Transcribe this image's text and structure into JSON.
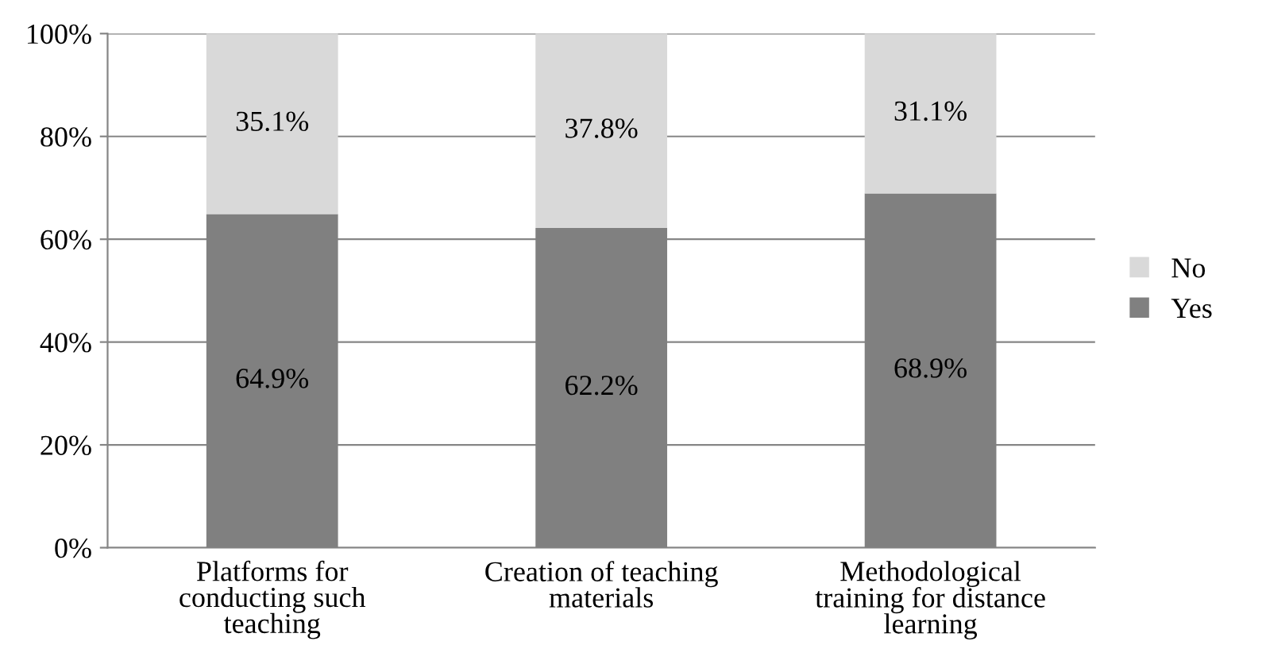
{
  "chart_data": {
    "type": "bar",
    "stacked": true,
    "categories": [
      "Platforms for\nconducting such\nteaching",
      "Creation of teaching\nmaterials",
      "Methodological\ntraining for distance\nlearning"
    ],
    "series": [
      {
        "name": "Yes",
        "color": "#808080",
        "values": [
          64.9,
          62.2,
          68.9
        ],
        "value_labels": [
          "64.9%",
          "62.2%",
          "68.9%"
        ]
      },
      {
        "name": "No",
        "color": "#d9d9d9",
        "values": [
          35.1,
          37.8,
          31.1
        ],
        "value_labels": [
          "35.1%",
          "37.8%",
          "31.1%"
        ]
      }
    ],
    "ylim": [
      0,
      100
    ],
    "yticks": [
      {
        "value": 0,
        "label": "0%"
      },
      {
        "value": 20,
        "label": "20%"
      },
      {
        "value": 40,
        "label": "40%"
      },
      {
        "value": 60,
        "label": "60%"
      },
      {
        "value": 80,
        "label": "80%"
      },
      {
        "value": 100,
        "label": "100%"
      }
    ],
    "grid": "y",
    "legend": "right"
  }
}
